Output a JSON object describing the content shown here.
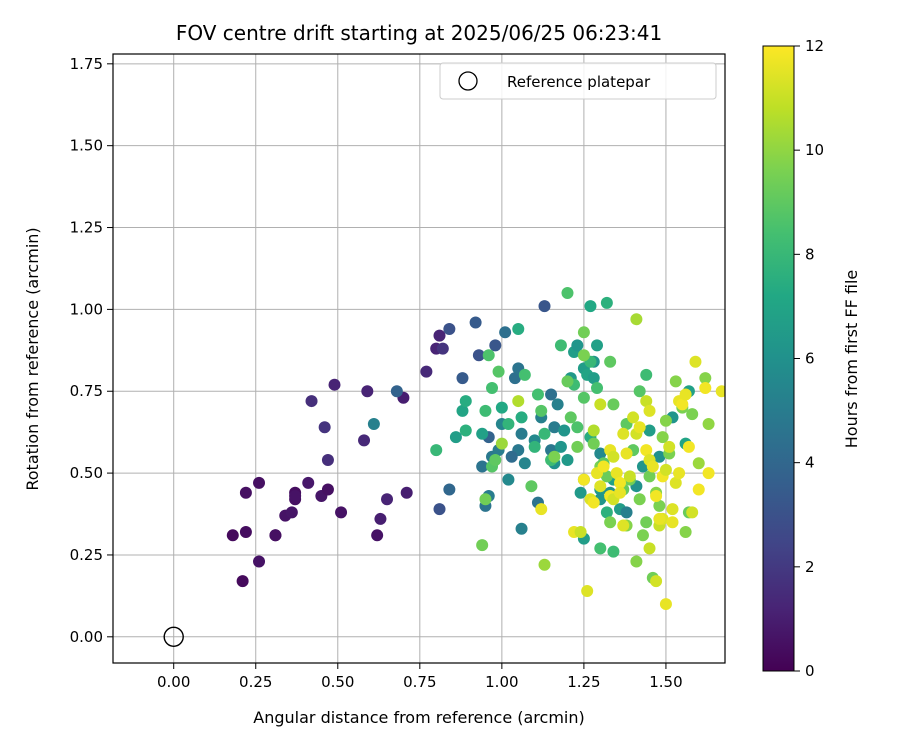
{
  "chart_data": {
    "type": "scatter",
    "title": "FOV centre drift starting at 2025/06/25 06:23:41",
    "xlabel": "Angular distance from reference (arcmin)",
    "ylabel": "Rotation from reference (arcmin)",
    "xlim": [
      -0.185,
      1.68
    ],
    "ylim": [
      -0.08,
      1.78
    ],
    "xticks": [
      "0.00",
      "0.25",
      "0.50",
      "0.75",
      "1.00",
      "1.25",
      "1.50"
    ],
    "yticks": [
      "0.00",
      "0.25",
      "0.50",
      "0.75",
      "1.00",
      "1.25",
      "1.50",
      "1.75"
    ],
    "grid": true,
    "legend": {
      "placement": "top-right",
      "entries": [
        "Reference platepar"
      ]
    },
    "reference_point": {
      "x": 0.0,
      "y": 0.0,
      "name": "Reference platepar"
    },
    "colorbar": {
      "label": "Hours from first FF file",
      "colormap": "viridis",
      "range": [
        0,
        12
      ],
      "ticks": [
        "0",
        "2",
        "4",
        "6",
        "8",
        "10",
        "12"
      ]
    },
    "points": [
      [
        0.18,
        0.31,
        0.3
      ],
      [
        0.21,
        0.17,
        0.3
      ],
      [
        0.22,
        0.32,
        0.4
      ],
      [
        0.22,
        0.44,
        0.5
      ],
      [
        0.26,
        0.47,
        0.5
      ],
      [
        0.26,
        0.23,
        0.6
      ],
      [
        0.31,
        0.31,
        0.4
      ],
      [
        0.31,
        0.31,
        0.5
      ],
      [
        0.34,
        0.37,
        0.6
      ],
      [
        0.36,
        0.38,
        0.7
      ],
      [
        0.37,
        0.44,
        0.4
      ],
      [
        0.37,
        0.42,
        0.5
      ],
      [
        0.37,
        0.43,
        0.6
      ],
      [
        0.41,
        0.47,
        0.8
      ],
      [
        0.45,
        0.43,
        0.7
      ],
      [
        0.47,
        0.45,
        0.5
      ],
      [
        0.51,
        0.38,
        0.6
      ],
      [
        0.62,
        0.31,
        0.6
      ],
      [
        0.63,
        0.36,
        1.0
      ],
      [
        0.65,
        0.42,
        1.2
      ],
      [
        0.71,
        0.44,
        1.0
      ],
      [
        0.7,
        0.73,
        1.0
      ],
      [
        0.42,
        0.72,
        1.6
      ],
      [
        0.46,
        0.64,
        1.8
      ],
      [
        0.47,
        0.54,
        1.6
      ],
      [
        0.49,
        0.77,
        1.2
      ],
      [
        0.58,
        0.6,
        1.4
      ],
      [
        0.59,
        0.75,
        1.2
      ],
      [
        0.77,
        0.81,
        1.4
      ],
      [
        0.8,
        0.88,
        1.2
      ],
      [
        0.81,
        0.92,
        1.2
      ],
      [
        0.82,
        0.88,
        1.8
      ],
      [
        0.84,
        0.94,
        3.0
      ],
      [
        0.88,
        0.79,
        3.4
      ],
      [
        0.81,
        0.39,
        3.0
      ],
      [
        0.84,
        0.45,
        4.0
      ],
      [
        0.61,
        0.65,
        5.2
      ],
      [
        0.68,
        0.75,
        3.8
      ],
      [
        0.92,
        0.96,
        3.4
      ],
      [
        0.93,
        0.86,
        3.0
      ],
      [
        0.96,
        0.61,
        3.8
      ],
      [
        0.98,
        0.89,
        3.2
      ],
      [
        0.94,
        0.52,
        4.6
      ],
      [
        0.95,
        0.4,
        4.6
      ],
      [
        0.96,
        0.43,
        5.0
      ],
      [
        0.97,
        0.55,
        4.8
      ],
      [
        0.99,
        0.57,
        5.0
      ],
      [
        1.0,
        0.65,
        5.4
      ],
      [
        1.01,
        0.93,
        4.4
      ],
      [
        1.04,
        0.79,
        4.4
      ],
      [
        1.05,
        0.82,
        4.6
      ],
      [
        1.06,
        0.62,
        5.0
      ],
      [
        1.06,
        0.33,
        5.2
      ],
      [
        1.07,
        0.53,
        5.4
      ],
      [
        1.05,
        0.57,
        4.8
      ],
      [
        1.02,
        0.48,
        5.6
      ],
      [
        1.03,
        0.55,
        4.2
      ],
      [
        1.1,
        0.6,
        5.6
      ],
      [
        1.11,
        0.41,
        4.6
      ],
      [
        1.12,
        0.67,
        5.2
      ],
      [
        1.13,
        1.01,
        3.2
      ],
      [
        1.15,
        0.74,
        4.4
      ],
      [
        1.16,
        0.64,
        5.0
      ],
      [
        1.17,
        0.71,
        5.2
      ],
      [
        1.19,
        0.63,
        6.2
      ],
      [
        1.15,
        0.57,
        4.8
      ],
      [
        1.16,
        0.53,
        6.0
      ],
      [
        1.18,
        0.58,
        6.2
      ],
      [
        1.2,
        0.54,
        6.4
      ],
      [
        1.21,
        0.79,
        6.4
      ],
      [
        1.22,
        0.87,
        6.6
      ],
      [
        1.23,
        0.89,
        6.2
      ],
      [
        1.25,
        0.82,
        6.6
      ],
      [
        1.26,
        0.8,
        7.0
      ],
      [
        1.28,
        0.79,
        6.6
      ],
      [
        1.29,
        0.89,
        6.8
      ],
      [
        1.28,
        0.84,
        6.2
      ],
      [
        1.27,
        1.01,
        7.2
      ],
      [
        1.25,
        0.3,
        6.6
      ],
      [
        1.24,
        0.44,
        6.4
      ],
      [
        1.25,
        0.48,
        6.2
      ],
      [
        1.3,
        0.45,
        6.4
      ],
      [
        1.3,
        0.42,
        6.2
      ],
      [
        1.33,
        0.44,
        6.0
      ],
      [
        1.34,
        0.48,
        6.8
      ],
      [
        1.36,
        0.39,
        6.6
      ],
      [
        1.38,
        0.38,
        5.2
      ],
      [
        1.41,
        0.46,
        6.0
      ],
      [
        1.43,
        0.52,
        6.2
      ],
      [
        1.45,
        0.63,
        6.6
      ],
      [
        1.48,
        0.55,
        6.0
      ],
      [
        1.52,
        0.67,
        6.2
      ],
      [
        1.56,
        0.59,
        7.0
      ],
      [
        1.57,
        0.75,
        6.8
      ],
      [
        1.3,
        0.56,
        5.6
      ],
      [
        1.27,
        0.61,
        7.4
      ],
      [
        0.8,
        0.57,
        8.0
      ],
      [
        0.86,
        0.61,
        6.6
      ],
      [
        0.88,
        0.69,
        7.0
      ],
      [
        0.89,
        0.72,
        7.4
      ],
      [
        0.89,
        0.63,
        7.6
      ],
      [
        0.94,
        0.62,
        6.8
      ],
      [
        0.96,
        0.86,
        8.6
      ],
      [
        0.97,
        0.76,
        8.4
      ],
      [
        0.99,
        0.81,
        8.8
      ],
      [
        1.0,
        0.7,
        7.2
      ],
      [
        1.02,
        0.65,
        7.8
      ],
      [
        0.95,
        0.69,
        8.2
      ],
      [
        0.97,
        0.52,
        8.8
      ],
      [
        0.98,
        0.54,
        9.0
      ],
      [
        1.05,
        0.94,
        7.4
      ],
      [
        1.07,
        0.8,
        8.4
      ],
      [
        1.06,
        0.67,
        7.4
      ],
      [
        1.1,
        0.58,
        7.8
      ],
      [
        1.11,
        0.74,
        8.4
      ],
      [
        1.12,
        0.69,
        8.8
      ],
      [
        1.13,
        0.62,
        8.0
      ],
      [
        1.15,
        0.54,
        8.2
      ],
      [
        1.18,
        0.89,
        8.2
      ],
      [
        1.2,
        1.05,
        8.6
      ],
      [
        1.22,
        0.77,
        8.2
      ],
      [
        1.23,
        0.64,
        8.6
      ],
      [
        1.25,
        0.73,
        8.8
      ],
      [
        1.25,
        0.93,
        9.4
      ],
      [
        1.27,
        0.84,
        8.0
      ],
      [
        1.29,
        0.76,
        8.4
      ],
      [
        1.32,
        1.02,
        7.6
      ],
      [
        1.33,
        0.84,
        9.0
      ],
      [
        1.34,
        0.71,
        9.2
      ],
      [
        1.38,
        0.65,
        9.0
      ],
      [
        1.4,
        0.57,
        9.0
      ],
      [
        1.42,
        0.75,
        8.8
      ],
      [
        1.44,
        0.8,
        8.2
      ],
      [
        1.3,
        0.27,
        8.4
      ],
      [
        1.34,
        0.26,
        8.2
      ],
      [
        1.32,
        0.38,
        7.6
      ],
      [
        0.94,
        0.28,
        9.4
      ],
      [
        0.95,
        0.42,
        9.4
      ],
      [
        1.09,
        0.46,
        9.0
      ],
      [
        1.16,
        0.55,
        9.6
      ],
      [
        1.2,
        0.78,
        9.2
      ],
      [
        1.21,
        0.67,
        9.0
      ],
      [
        1.23,
        0.58,
        9.4
      ],
      [
        1.25,
        0.86,
        9.6
      ],
      [
        1.28,
        0.59,
        9.4
      ],
      [
        1.3,
        0.52,
        9.6
      ],
      [
        1.31,
        0.53,
        9.0
      ],
      [
        1.32,
        0.49,
        9.2
      ],
      [
        1.33,
        0.35,
        9.6
      ],
      [
        1.37,
        0.45,
        9.2
      ],
      [
        1.38,
        0.34,
        9.8
      ],
      [
        1.39,
        0.48,
        9.4
      ],
      [
        1.41,
        0.23,
        9.8
      ],
      [
        1.42,
        0.42,
        9.6
      ],
      [
        1.43,
        0.31,
        9.6
      ],
      [
        1.44,
        0.35,
        9.4
      ],
      [
        1.45,
        0.49,
        9.4
      ],
      [
        1.46,
        0.18,
        9.4
      ],
      [
        1.47,
        0.44,
        9.8
      ],
      [
        1.48,
        0.4,
        9.6
      ],
      [
        1.49,
        0.61,
        9.8
      ],
      [
        1.5,
        0.66,
        9.8
      ],
      [
        1.51,
        0.56,
        9.6
      ],
      [
        1.53,
        0.78,
        9.8
      ],
      [
        1.55,
        0.7,
        9.6
      ],
      [
        1.56,
        0.32,
        9.8
      ],
      [
        1.57,
        0.38,
        9.2
      ],
      [
        1.58,
        0.68,
        9.6
      ],
      [
        1.6,
        0.53,
        10.2
      ],
      [
        1.62,
        0.79,
        9.8
      ],
      [
        1.63,
        0.65,
        10.0
      ],
      [
        1.41,
        0.97,
        10.4
      ],
      [
        1.28,
        0.63,
        10.6
      ],
      [
        1.13,
        0.22,
        10.2
      ],
      [
        1.0,
        0.59,
        10.2
      ],
      [
        1.05,
        0.72,
        10.6
      ],
      [
        1.4,
        0.67,
        11.2
      ],
      [
        1.44,
        0.72,
        11.0
      ],
      [
        1.45,
        0.69,
        11.4
      ],
      [
        1.45,
        0.27,
        11.0
      ],
      [
        1.47,
        0.17,
        11.2
      ],
      [
        1.48,
        0.34,
        11.0
      ],
      [
        1.49,
        0.36,
        11.4
      ],
      [
        1.5,
        0.1,
        11.6
      ],
      [
        1.51,
        0.58,
        11.2
      ],
      [
        1.52,
        0.35,
        11.6
      ],
      [
        1.53,
        0.47,
        11.4
      ],
      [
        1.54,
        0.5,
        11.6
      ],
      [
        1.54,
        0.72,
        11.6
      ],
      [
        1.55,
        0.71,
        11.8
      ],
      [
        1.56,
        0.74,
        11.6
      ],
      [
        1.57,
        0.58,
        11.8
      ],
      [
        1.58,
        0.38,
        11.2
      ],
      [
        1.59,
        0.84,
        11.4
      ],
      [
        1.6,
        0.45,
        11.8
      ],
      [
        1.62,
        0.76,
        11.8
      ],
      [
        1.63,
        0.5,
        11.8
      ],
      [
        1.67,
        0.75,
        11.6
      ],
      [
        1.26,
        0.14,
        11.4
      ],
      [
        1.22,
        0.32,
        11.6
      ],
      [
        1.24,
        0.32,
        11.0
      ],
      [
        1.25,
        0.48,
        11.8
      ],
      [
        1.27,
        0.42,
        11.4
      ],
      [
        1.29,
        0.5,
        11.6
      ],
      [
        1.3,
        0.46,
        11.4
      ],
      [
        1.31,
        0.52,
        11.8
      ],
      [
        1.33,
        0.57,
        11.6
      ],
      [
        1.33,
        0.43,
        11.8
      ],
      [
        1.34,
        0.55,
        11.2
      ],
      [
        1.35,
        0.5,
        11.6
      ],
      [
        1.36,
        0.47,
        11.8
      ],
      [
        1.37,
        0.34,
        11.4
      ],
      [
        1.38,
        0.56,
        11.6
      ],
      [
        1.39,
        0.49,
        11.0
      ],
      [
        1.41,
        0.62,
        11.2
      ],
      [
        1.42,
        0.64,
        11.6
      ],
      [
        1.44,
        0.57,
        11.8
      ],
      [
        1.45,
        0.54,
        11.4
      ],
      [
        1.46,
        0.52,
        11.6
      ],
      [
        1.47,
        0.43,
        11.8
      ],
      [
        1.48,
        0.36,
        11.6
      ],
      [
        1.49,
        0.49,
        11.8
      ],
      [
        1.3,
        0.71,
        11.0
      ],
      [
        1.12,
        0.39,
        11.6
      ],
      [
        1.34,
        0.42,
        11.2
      ],
      [
        1.36,
        0.44,
        11.6
      ],
      [
        1.28,
        0.41,
        11.8
      ],
      [
        1.37,
        0.62,
        11.4
      ],
      [
        1.5,
        0.51,
        11.2
      ],
      [
        1.52,
        0.39,
        11.4
      ]
    ]
  }
}
